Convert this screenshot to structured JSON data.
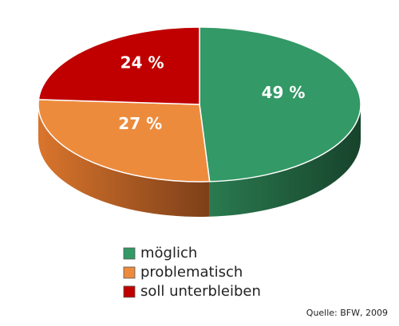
{
  "chart_data": {
    "type": "pie",
    "categories": [
      "möglich",
      "problematisch",
      "soll unterbleiben"
    ],
    "values": [
      49,
      27,
      24
    ],
    "value_labels": [
      "49 %",
      "27 %",
      "24 %"
    ],
    "colors": [
      "#339966",
      "#ed8b3d",
      "#c00000"
    ],
    "legend": "bottom",
    "annotation": "Quelle: BFW, 2009"
  }
}
